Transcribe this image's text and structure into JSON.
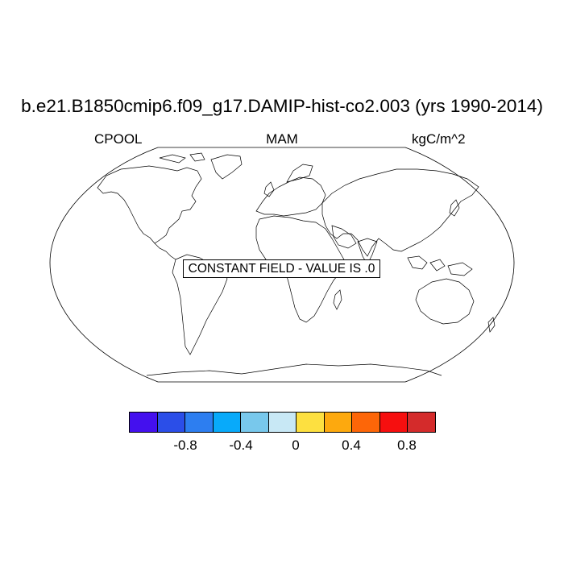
{
  "title": "b.e21.B1850cmip6.f09_g17.DAMIP-hist-co2.003 (yrs 1990-2014)",
  "variable": "CPOOL",
  "season": "MAM",
  "units": "kgC/m^2",
  "constant_field_message": "CONSTANT FIELD - VALUE IS .0",
  "colorbar": {
    "colors": [
      "#4410ee",
      "#2b4ee8",
      "#2d7ef0",
      "#08aafa",
      "#78c8ec",
      "#c8e8f5",
      "#fde040",
      "#fda90e",
      "#fd6608",
      "#f60f0f",
      "#d42b2b"
    ],
    "tick_labels": [
      "-0.8",
      "-0.4",
      "0",
      "0.4",
      "0.8"
    ]
  }
}
